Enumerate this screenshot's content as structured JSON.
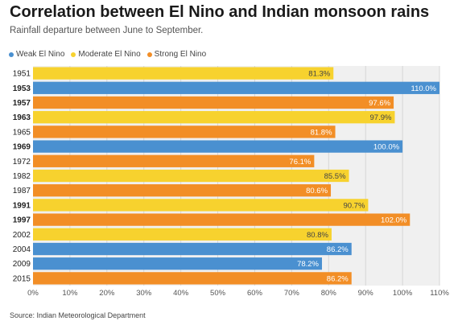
{
  "header": {
    "title": "Correlation between El Nino and Indian monsoon rains",
    "subtitle": "Rainfall departure between June to September."
  },
  "legend": [
    {
      "label": "Weak El Nino",
      "color": "#4a90d0"
    },
    {
      "label": "Moderate El Nino",
      "color": "#f7d22e"
    },
    {
      "label": "Strong El Nino",
      "color": "#f28e26"
    }
  ],
  "chart_data": {
    "type": "bar",
    "orientation": "horizontal",
    "title": "Correlation between El Nino and Indian monsoon rains",
    "subtitle": "Rainfall departure between June to September.",
    "xlim": [
      0,
      110
    ],
    "x_ticks": [
      "0%",
      "10%",
      "20%",
      "30%",
      "40%",
      "50%",
      "60%",
      "70%",
      "80%",
      "90%",
      "100%",
      "110%"
    ],
    "grid": true,
    "legend_position": "top-left",
    "categories": [
      "1951",
      "1953",
      "1957",
      "1963",
      "1965",
      "1969",
      "1972",
      "1982",
      "1987",
      "1991",
      "1997",
      "2002",
      "2004",
      "2009",
      "2015"
    ],
    "values": [
      81.3,
      110.0,
      97.6,
      97.9,
      81.8,
      100.0,
      76.1,
      85.5,
      80.6,
      90.7,
      102.0,
      80.8,
      86.2,
      78.2,
      86.2
    ],
    "value_labels": [
      "81.3%",
      "110.0%",
      "97.6%",
      "97.9%",
      "81.8%",
      "100.0%",
      "76.1%",
      "85.5%",
      "80.6%",
      "90.7%",
      "102.0%",
      "80.8%",
      "86.2%",
      "78.2%",
      "86.2%"
    ],
    "intensity": [
      "Moderate El Nino",
      "Weak El Nino",
      "Strong El Nino",
      "Moderate El Nino",
      "Strong El Nino",
      "Weak El Nino",
      "Strong El Nino",
      "Moderate El Nino",
      "Strong El Nino",
      "Moderate El Nino",
      "Strong El Nino",
      "Moderate El Nino",
      "Weak El Nino",
      "Weak El Nino",
      "Strong El Nino"
    ],
    "bold_categories": [
      "1953",
      "1957",
      "1963",
      "1969",
      "1991",
      "1997"
    ]
  },
  "footer": {
    "source": "Source: Indian Meteorological Department"
  }
}
